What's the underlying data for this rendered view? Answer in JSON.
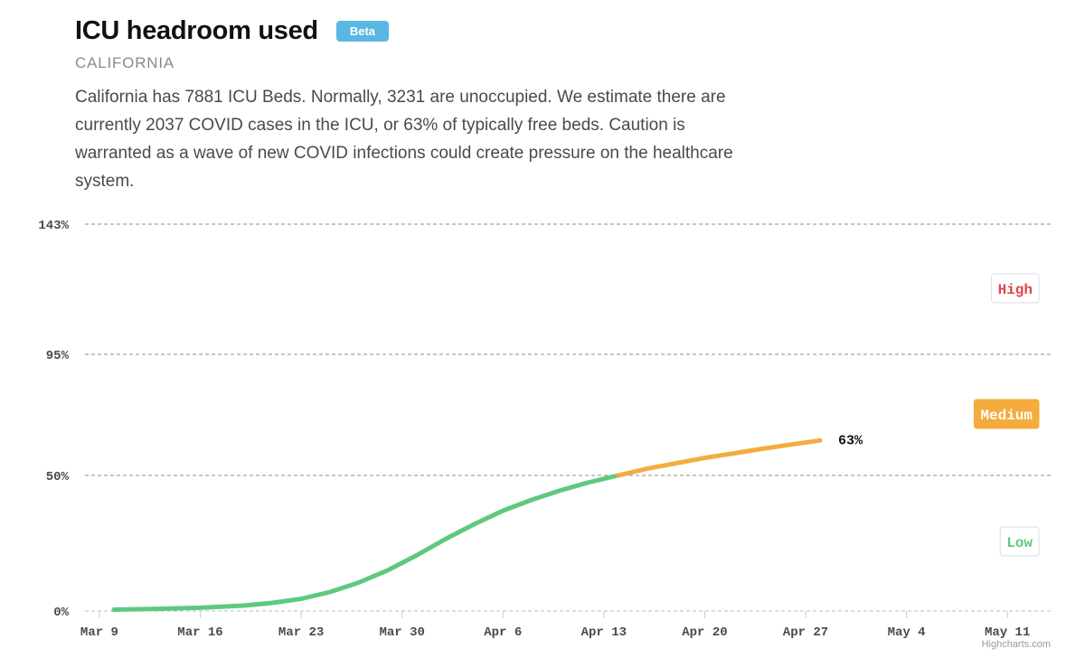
{
  "header": {
    "title": "ICU headroom used",
    "badge": "Beta",
    "subtitle": "CALIFORNIA",
    "description": "California has 7881 ICU Beds. Normally, 3231 are unoccupied. We estimate there are currently 2037 COVID cases in the ICU, or 63% of typically free beds. Caution is warranted as a wave of new COVID infections could create pressure on the healthcare system."
  },
  "credit": "Highcharts.com",
  "colors": {
    "low": "#5ec97e",
    "medium": "#f4ac3e",
    "high": "#e0434b",
    "grid": "#8c8c8c",
    "axis_text": "#4a4a4a"
  },
  "chart_data": {
    "type": "line",
    "x_tick_labels": [
      "Mar 9",
      "Mar 16",
      "Mar 23",
      "Mar 30",
      "Apr 6",
      "Apr 13",
      "Apr 20",
      "Apr 27",
      "May 4",
      "May 11"
    ],
    "x_ticks": [
      "2020-03-09",
      "2020-03-16",
      "2020-03-23",
      "2020-03-30",
      "2020-04-06",
      "2020-04-13",
      "2020-04-20",
      "2020-04-27",
      "2020-05-04",
      "2020-05-11"
    ],
    "xlim": [
      "2020-03-08",
      "2020-05-14"
    ],
    "y_ticks": [
      0,
      50,
      95,
      143
    ],
    "y_tick_labels": [
      "0%",
      "50%",
      "95%",
      "143%"
    ],
    "ylim": [
      0,
      143
    ],
    "grid": true,
    "series": [
      {
        "x": [
          "2020-03-10",
          "2020-03-13",
          "2020-03-16",
          "2020-03-19",
          "2020-03-21",
          "2020-03-23",
          "2020-03-25",
          "2020-03-27",
          "2020-03-29",
          "2020-03-31",
          "2020-04-02",
          "2020-04-04",
          "2020-04-06",
          "2020-04-08",
          "2020-04-10",
          "2020-04-12",
          "2020-04-14",
          "2020-04-16",
          "2020-04-18",
          "2020-04-20",
          "2020-04-22",
          "2020-04-24",
          "2020-04-26",
          "2020-04-28"
        ],
        "values": [
          0.5,
          0.8,
          1.2,
          2.0,
          3.0,
          4.5,
          7.0,
          10.5,
          15.0,
          20.5,
          26.5,
          32.0,
          37.0,
          41.0,
          44.5,
          47.5,
          50.0,
          52.5,
          54.5,
          56.5,
          58.2,
          59.9,
          61.5,
          63.0
        ]
      }
    ],
    "end_label": "63%",
    "zones": [
      {
        "label": "Low",
        "from": 0,
        "to": 50
      },
      {
        "label": "Medium",
        "from": 50,
        "to": 95
      },
      {
        "label": "High",
        "from": 95,
        "to": 143
      }
    ]
  }
}
